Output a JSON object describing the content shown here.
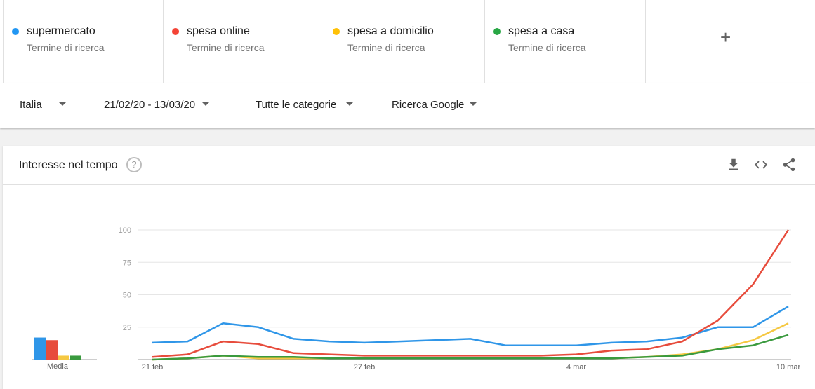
{
  "terms": [
    {
      "name": "supermercato",
      "sub": "Termine di ricerca",
      "color": "#2196f3"
    },
    {
      "name": "spesa online",
      "sub": "Termine di ricerca",
      "color": "#f44336"
    },
    {
      "name": "spesa a domicilio",
      "sub": "Termine di ricerca",
      "color": "#ffc107"
    },
    {
      "name": "spesa a casa",
      "sub": "Termine di ricerca",
      "color": "#28a745"
    }
  ],
  "add_icon": "plus-icon",
  "filters": {
    "country": "Italia",
    "date_range": "21/02/20 - 13/03/20",
    "category": "Tutte le categorie",
    "search_type": "Ricerca Google"
  },
  "card": {
    "title": "Interesse nel tempo",
    "help_icon": "question-icon",
    "actions": [
      "download-icon",
      "embed-icon",
      "share-icon"
    ]
  },
  "chart_data": {
    "type": "line",
    "x": [
      "21 feb",
      "22 feb",
      "23 feb",
      "24 feb",
      "25 feb",
      "26 feb",
      "27 feb",
      "28 feb",
      "29 feb",
      "1 mar",
      "2 mar",
      "3 mar",
      "4 mar",
      "5 mar",
      "6 mar",
      "7 mar",
      "8 mar",
      "9 mar",
      "10 mar"
    ],
    "x_tick_labels": [
      "21 feb",
      "27 feb",
      "4 mar",
      "10 mar"
    ],
    "x_tick_index": [
      0,
      6,
      12,
      18
    ],
    "ylim": [
      0,
      100
    ],
    "y_ticks": [
      25,
      50,
      75,
      100
    ],
    "grid": true,
    "series": [
      {
        "name": "supermercato",
        "color": "#2f96e8",
        "values": [
          13,
          14,
          28,
          25,
          16,
          14,
          13,
          14,
          15,
          16,
          11,
          11,
          11,
          13,
          14,
          17,
          25,
          25,
          41
        ]
      },
      {
        "name": "spesa online",
        "color": "#e74c3c",
        "values": [
          2,
          4,
          14,
          12,
          5,
          4,
          3,
          3,
          3,
          3,
          3,
          3,
          4,
          7,
          8,
          14,
          30,
          58,
          100
        ]
      },
      {
        "name": "spesa a domicilio",
        "color": "#f5c842",
        "values": [
          0,
          1,
          3,
          1,
          1,
          1,
          1,
          1,
          1,
          1,
          1,
          1,
          1,
          1,
          2,
          4,
          8,
          15,
          28
        ]
      },
      {
        "name": "spesa a casa",
        "color": "#3a9a3e",
        "values": [
          0,
          1,
          3,
          2,
          2,
          1,
          1,
          1,
          1,
          1,
          1,
          1,
          1,
          1,
          2,
          3,
          8,
          11,
          19
        ]
      }
    ],
    "average_label": "Media",
    "averages": [
      17,
      15,
      3,
      3
    ]
  }
}
